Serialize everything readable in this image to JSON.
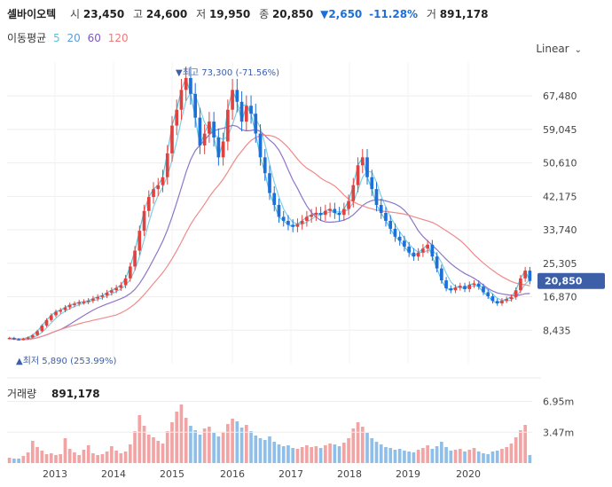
{
  "header": {
    "name": "셀바이오텍",
    "open_label": "시",
    "open": "23,450",
    "high_label": "고",
    "high": "24,600",
    "low_label": "저",
    "low": "19,950",
    "close_label": "종",
    "close": "20,850",
    "change": "▼2,650",
    "change_pct": "-11.28%",
    "volume_label": "거",
    "volume": "891,178"
  },
  "ma_legend": {
    "label": "이동평균",
    "items": [
      {
        "text": "5",
        "color": "#55c6e0"
      },
      {
        "text": "20",
        "color": "#5b9bd5"
      },
      {
        "text": "60",
        "color": "#7e57c2"
      },
      {
        "text": "120",
        "color": "#ef7a7a"
      }
    ]
  },
  "scale_mode": "Linear",
  "volume_title": "거래량",
  "volume_value": "891,178",
  "colors": {
    "up": "#e0433f",
    "down": "#1e6fd9",
    "vol_up": "#f2a3a3",
    "vol_down": "#8fbfe8",
    "tag": "#3d5fa8"
  },
  "chart_data": {
    "type": "candlestick",
    "price_axis": {
      "ticks": [
        "67,480",
        "59,045",
        "50,610",
        "42,175",
        "33,740",
        "25,305",
        "16,870",
        "8,435"
      ],
      "min": 0,
      "max": 76000
    },
    "x_ticks": [
      "2013",
      "2014",
      "2015",
      "2016",
      "2017",
      "2018",
      "2019",
      "2020"
    ],
    "last_price": {
      "label": "20,850",
      "value": 20850
    },
    "annotations": {
      "high": "▼최고 73,300 (-71.56%)",
      "low": "▲최저 5,890 (253.99%)"
    },
    "volume_axis": {
      "ticks": [
        "6.95m",
        "3.47m"
      ],
      "max": 9000000
    },
    "close_series": [
      6500,
      6200,
      6100,
      6300,
      6600,
      7200,
      8200,
      9600,
      11000,
      12200,
      13100,
      13500,
      14200,
      14800,
      15100,
      15500,
      15600,
      15900,
      16400,
      16800,
      17200,
      17900,
      18500,
      19100,
      19800,
      21500,
      24500,
      28500,
      33500,
      38500,
      42000,
      44000,
      45000,
      47000,
      53000,
      60000,
      64000,
      69000,
      72000,
      68000,
      62000,
      55000,
      58000,
      61000,
      57000,
      52000,
      56000,
      64000,
      69000,
      66000,
      61000,
      65000,
      63000,
      58000,
      52000,
      48000,
      43000,
      40000,
      37000,
      36000,
      35000,
      34500,
      35200,
      36000,
      37000,
      37500,
      38000,
      37500,
      38500,
      39000,
      38000,
      37500,
      39000,
      41000,
      45000,
      50000,
      52000,
      47000,
      44000,
      40000,
      38000,
      36000,
      34000,
      32000,
      31000,
      29500,
      28000,
      27000,
      28000,
      29000,
      30000,
      27000,
      24000,
      21000,
      19000,
      18500,
      19200,
      19600,
      18800,
      19900,
      20200,
      19400,
      18000,
      17000,
      15800,
      15200,
      15900,
      16300,
      16800,
      18500,
      21500,
      23450,
      20850
    ],
    "volume_series": [
      0.6,
      0.5,
      0.5,
      0.8,
      1.2,
      2.5,
      1.8,
      1.4,
      1.0,
      1.1,
      0.9,
      1.0,
      2.8,
      1.6,
      1.2,
      0.9,
      1.5,
      2.0,
      1.1,
      0.9,
      1.0,
      1.3,
      1.9,
      1.4,
      1.1,
      1.3,
      2.1,
      3.6,
      5.4,
      4.2,
      3.2,
      2.9,
      2.5,
      2.2,
      3.6,
      4.6,
      5.8,
      6.6,
      5.1,
      4.2,
      3.7,
      3.2,
      3.9,
      4.1,
      3.4,
      3.0,
      3.5,
      4.4,
      5.0,
      4.7,
      4.0,
      4.3,
      3.6,
      3.1,
      2.8,
      2.6,
      3.0,
      2.4,
      2.1,
      1.9,
      2.0,
      1.7,
      1.6,
      1.8,
      2.0,
      1.8,
      1.9,
      1.7,
      2.0,
      2.2,
      2.1,
      1.9,
      2.3,
      2.8,
      3.9,
      4.6,
      4.1,
      3.4,
      2.8,
      2.4,
      2.1,
      1.8,
      1.7,
      1.5,
      1.6,
      1.4,
      1.3,
      1.2,
      1.5,
      1.7,
      2.0,
      1.6,
      1.9,
      2.4,
      1.8,
      1.4,
      1.5,
      1.6,
      1.3,
      1.5,
      1.7,
      1.3,
      1.1,
      1.0,
      1.3,
      1.4,
      1.6,
      1.8,
      2.2,
      2.9,
      3.7,
      4.3,
      0.9
    ]
  }
}
